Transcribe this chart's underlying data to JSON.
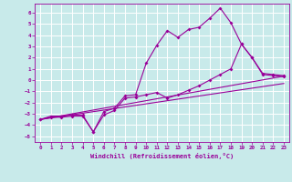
{
  "title": "",
  "xlabel": "Windchill (Refroidissement éolien,°C)",
  "bg_color": "#c8eaea",
  "line_color": "#990099",
  "grid_color": "#ffffff",
  "xlim": [
    -0.5,
    23.5
  ],
  "ylim": [
    -5.5,
    6.8
  ],
  "xticks": [
    0,
    1,
    2,
    3,
    4,
    5,
    6,
    7,
    8,
    9,
    10,
    11,
    12,
    13,
    14,
    15,
    16,
    17,
    18,
    19,
    20,
    21,
    22,
    23
  ],
  "yticks": [
    -5,
    -4,
    -3,
    -2,
    -1,
    0,
    1,
    2,
    3,
    4,
    5,
    6
  ],
  "line1_x": [
    0,
    1,
    2,
    3,
    4,
    5,
    6,
    7,
    8,
    9,
    10,
    11,
    12,
    13,
    14,
    15,
    16,
    17,
    18,
    19,
    20,
    21,
    22,
    23
  ],
  "line1_y": [
    -3.5,
    -3.2,
    -3.2,
    -3.1,
    -3.1,
    -4.6,
    -2.8,
    -2.5,
    -1.4,
    -1.3,
    1.5,
    3.1,
    4.4,
    3.8,
    4.5,
    4.7,
    5.5,
    6.4,
    5.1,
    3.2,
    2.0,
    0.6,
    0.5,
    0.4
  ],
  "line2_x": [
    0,
    1,
    2,
    3,
    4,
    5,
    6,
    7,
    8,
    9,
    10,
    11,
    12,
    13,
    14,
    15,
    16,
    17,
    18,
    19,
    20,
    21,
    22,
    23
  ],
  "line2_y": [
    -3.5,
    -3.3,
    -3.3,
    -3.2,
    -3.2,
    -4.6,
    -3.1,
    -2.7,
    -1.6,
    -1.5,
    -1.3,
    -1.1,
    -1.6,
    -1.3,
    -0.9,
    -0.5,
    0.0,
    0.5,
    1.0,
    3.2,
    2.0,
    0.5,
    0.4,
    0.3
  ],
  "line3_x": [
    0,
    23
  ],
  "line3_y": [
    -3.5,
    0.35
  ],
  "line4_x": [
    0,
    23
  ],
  "line4_y": [
    -3.5,
    -0.3
  ]
}
